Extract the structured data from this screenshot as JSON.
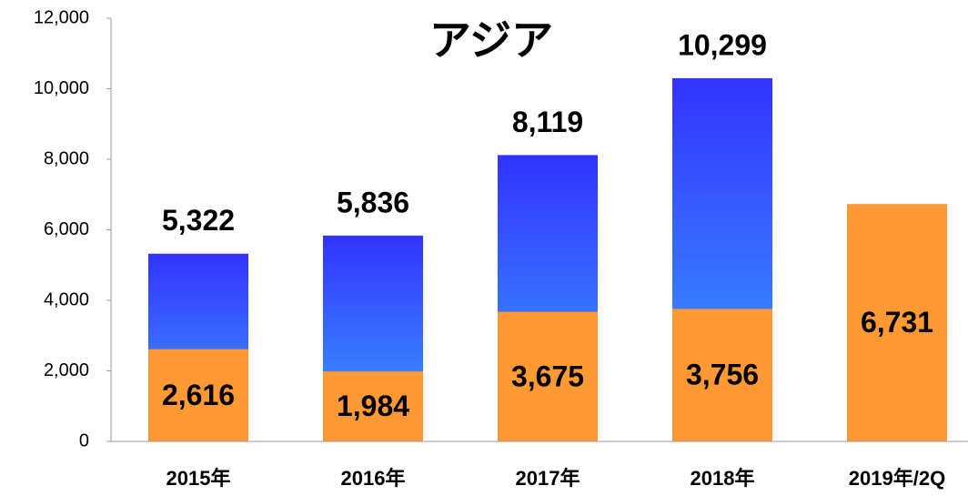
{
  "chart_data": {
    "type": "bar",
    "title": "アジア",
    "categories": [
      "2015年",
      "2016年",
      "2017年",
      "2018年",
      "2019年/2Q"
    ],
    "series": [
      {
        "color": "#3333ff",
        "values": [
          5322,
          5836,
          8119,
          10299,
          null
        ],
        "value_labels": [
          "5,322",
          "5,836",
          "8,119",
          "10,299",
          null
        ]
      },
      {
        "color": "#ff9933",
        "values": [
          2616,
          1984,
          3675,
          3756,
          6731
        ],
        "value_labels": [
          "2,616",
          "1,984",
          "3,675",
          "3,756",
          "6,731"
        ]
      }
    ],
    "ylim": [
      0,
      12000
    ],
    "yticks": [
      0,
      {
        "value": 2000,
        "label": "2,000"
      },
      {
        "value": 4000,
        "label": "4,000"
      },
      {
        "value": 6000,
        "label": "6,000"
      },
      {
        "value": 8000,
        "label": "8,000"
      },
      {
        "value": 10000,
        "label": "10,000"
      },
      {
        "value": 12000,
        "label": "12,000"
      }
    ],
    "grid": false
  }
}
